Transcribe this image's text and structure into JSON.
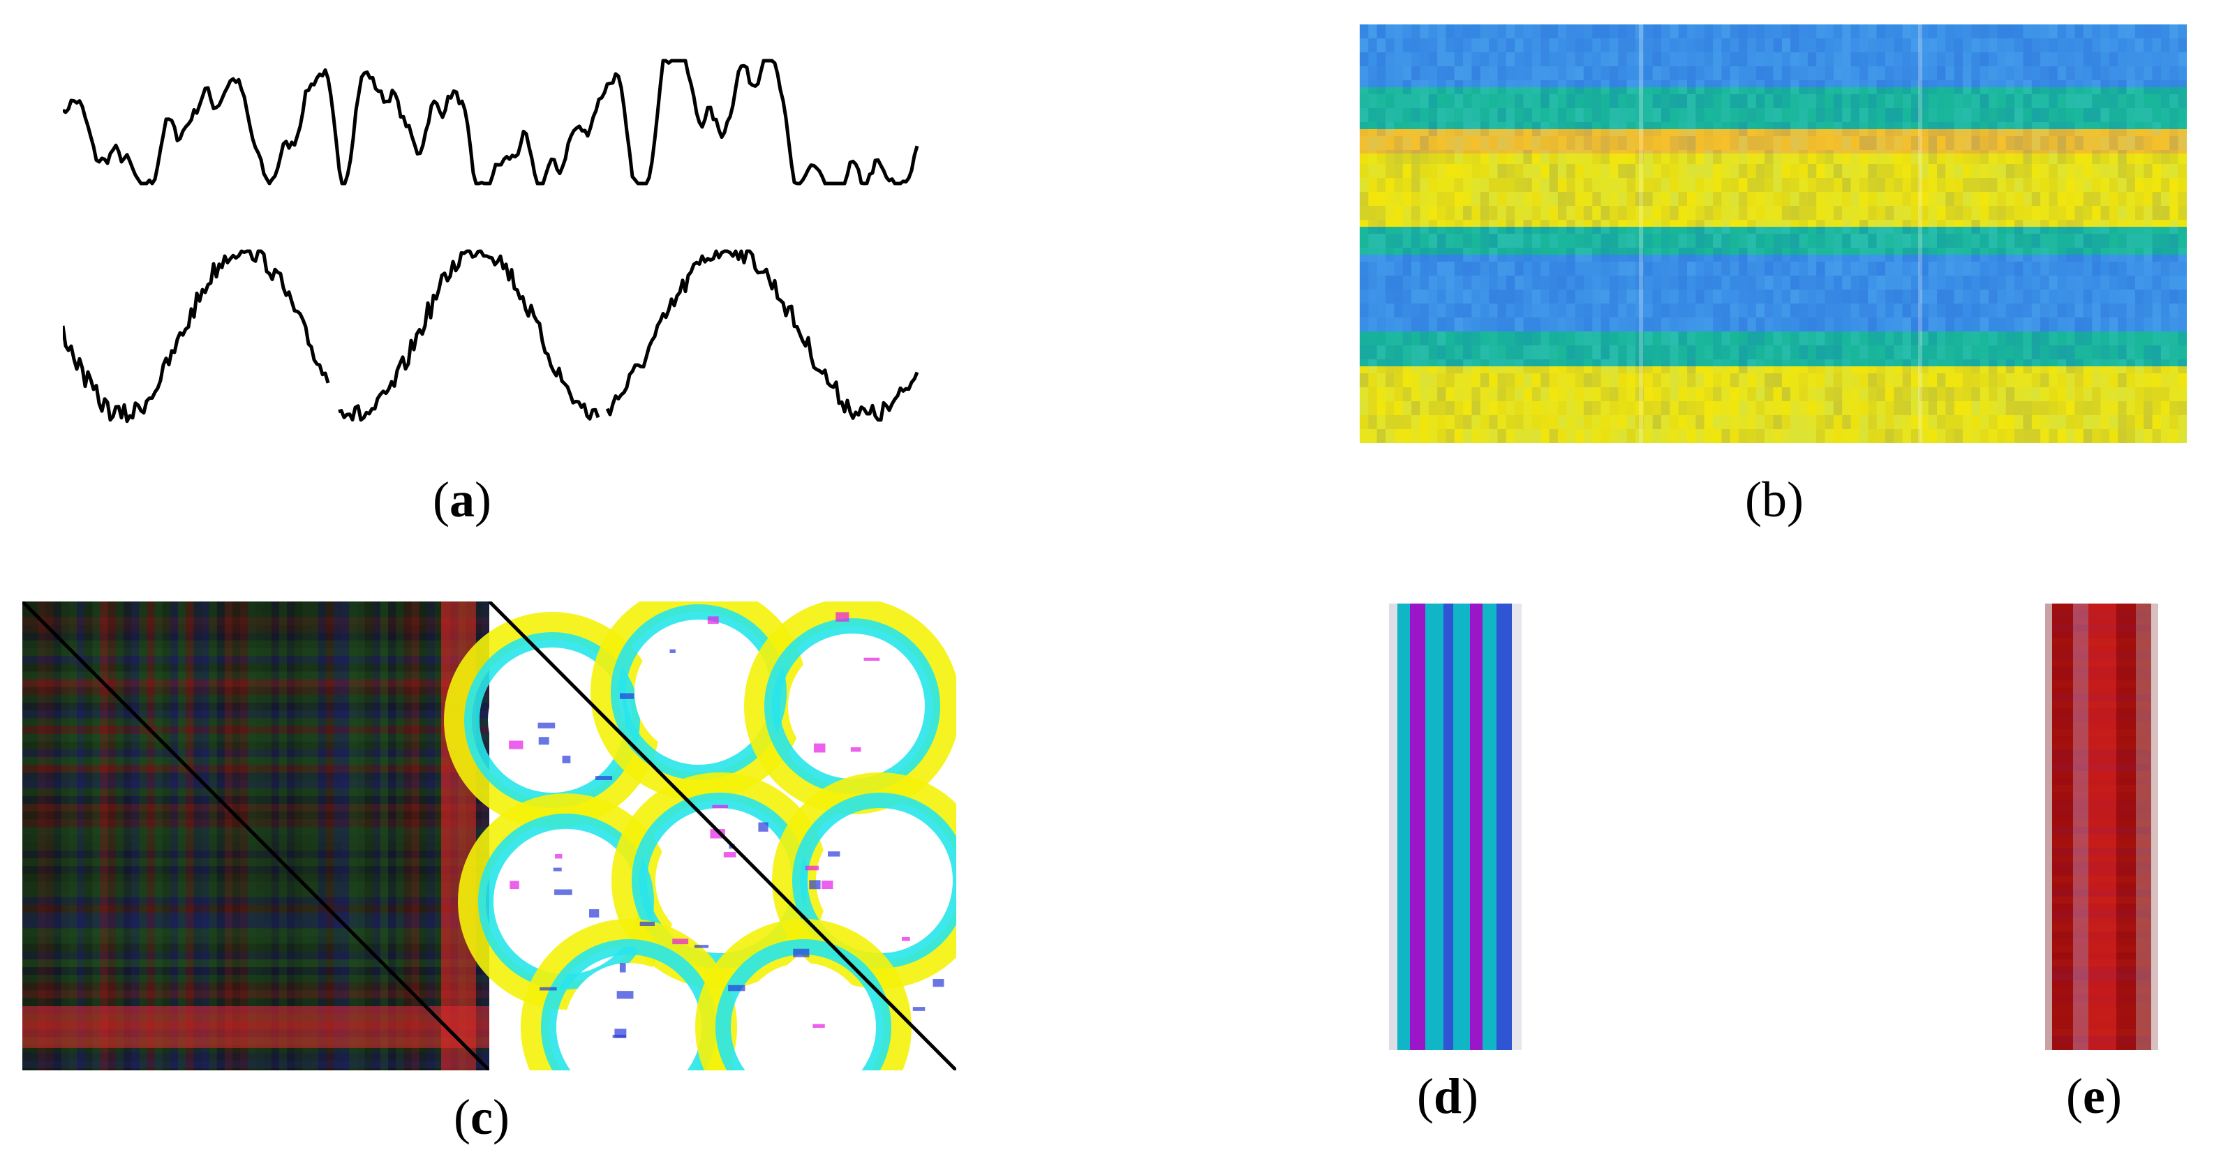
{
  "figure": {
    "panels": [
      {
        "id": "a",
        "caption_open": "(",
        "caption_letter": "a",
        "caption_close": ")",
        "letter_bold": true
      },
      {
        "id": "b",
        "caption_open": "(",
        "caption_letter": "b",
        "caption_close": ")",
        "letter_bold": false
      },
      {
        "id": "c",
        "caption_open": "(",
        "caption_letter": "c",
        "caption_close": ")",
        "letter_bold": true
      },
      {
        "id": "d",
        "caption_open": "(",
        "caption_letter": "d",
        "caption_close": ")",
        "letter_bold": true
      },
      {
        "id": "e",
        "caption_open": "(",
        "caption_letter": "e",
        "caption_close": ")",
        "letter_bold": true
      }
    ],
    "colors": {
      "trace": "#000000",
      "spectrogram_blue": "#3a8ee6",
      "spectrogram_green": "#19b79a",
      "spectrogram_yellow": "#f2e60c",
      "spectrogram_orange": "#f6c02a",
      "rp_dark": "#0f120c",
      "rp_red": "#e02a2a",
      "rp_green": "#2e7d32",
      "rp_blue": "#2b35a8",
      "ts_cyan": "#10b6c6",
      "ts_blue": "#2f55d4",
      "ts_purple": "#9a16c8",
      "ts_dark_red": "#9e0d0d",
      "ts_red": "#c41a1a"
    }
  }
}
